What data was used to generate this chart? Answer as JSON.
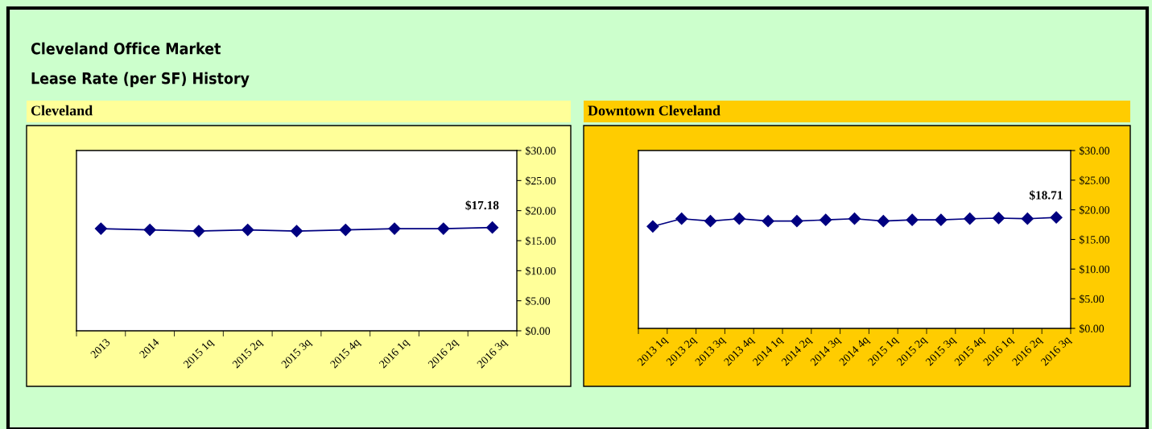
{
  "chart_data": [
    {
      "type": "line",
      "title": "Cleveland",
      "annotations": [
        "Cleveland Office Market",
        "Lease Rate (per SF) History"
      ],
      "categories": [
        "2013",
        "2014",
        "2015 1q",
        "2015 2q",
        "2015 3q",
        "2015 4q",
        "2016 1q",
        "2016 2q",
        "2016 3q"
      ],
      "series": [
        {
          "color": "#000080",
          "values": [
            17.0,
            16.8,
            16.6,
            16.8,
            16.6,
            16.8,
            17.0,
            17.0,
            17.18
          ],
          "value_labels": [
            null,
            null,
            null,
            null,
            null,
            null,
            null,
            null,
            "$17.18"
          ]
        }
      ],
      "ylim": [
        0,
        30
      ],
      "yticks": [
        {
          "value": 0,
          "label": "$0.00"
        },
        {
          "value": 5,
          "label": "$5.00"
        },
        {
          "value": 10,
          "label": "$10.00"
        },
        {
          "value": 15,
          "label": "$15.00"
        },
        {
          "value": 20,
          "label": "$20.00"
        },
        {
          "value": 25,
          "label": "$25.00"
        },
        {
          "value": 30,
          "label": "$30.00"
        }
      ],
      "marker": "diamond",
      "grid": false,
      "legend": false
    },
    {
      "type": "line",
      "title": "Downtown Cleveland",
      "categories": [
        "2013 1q",
        "2013 2q",
        "2013 3q",
        "2013 4q",
        "2014 1q",
        "2014 2q",
        "2014 3q",
        "2014 4q",
        "2015 1q",
        "2015 2q",
        "2015 3q",
        "2015 4q",
        "2016 1q",
        "2016 2q",
        "2016 3q"
      ],
      "series": [
        {
          "color": "#000080",
          "values": [
            17.2,
            18.5,
            18.1,
            18.5,
            18.1,
            18.1,
            18.3,
            18.5,
            18.1,
            18.3,
            18.3,
            18.5,
            18.6,
            18.5,
            18.71
          ],
          "value_labels": [
            null,
            null,
            null,
            null,
            null,
            null,
            null,
            null,
            null,
            null,
            null,
            null,
            null,
            null,
            "$18.71"
          ]
        }
      ],
      "ylim": [
        0,
        30
      ],
      "yticks": [
        {
          "value": 0,
          "label": "$0.00"
        },
        {
          "value": 5,
          "label": "$5.00"
        },
        {
          "value": 10,
          "label": "$10.00"
        },
        {
          "value": 15,
          "label": "$15.00"
        },
        {
          "value": 20,
          "label": "$20.00"
        },
        {
          "value": 25,
          "label": "$25.00"
        },
        {
          "value": 30,
          "label": "$30.00"
        }
      ],
      "marker": "diamond",
      "grid": false,
      "legend": false
    }
  ]
}
